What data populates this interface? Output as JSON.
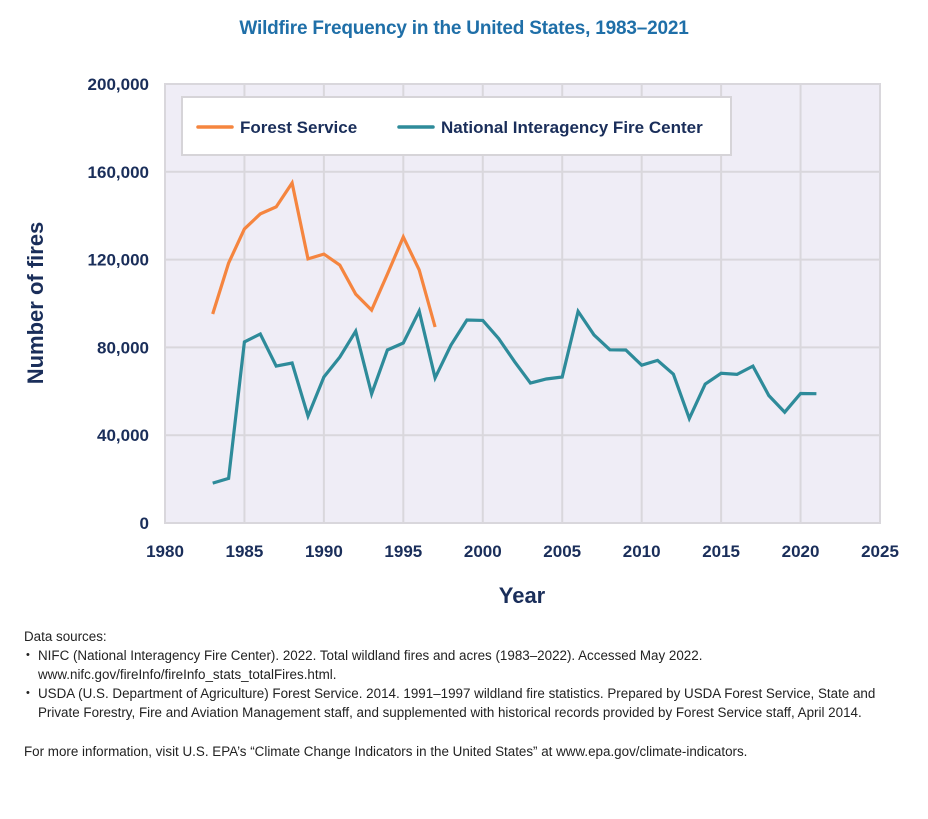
{
  "chart_data": {
    "type": "line",
    "title": "Wildfire Frequency in the United States, 1983–2021",
    "xlabel": "Year",
    "ylabel": "Number of fires",
    "xlim": [
      1980,
      2025
    ],
    "ylim": [
      0,
      200000
    ],
    "x_ticks": [
      1980,
      1985,
      1990,
      1995,
      2000,
      2005,
      2010,
      2015,
      2020,
      2025
    ],
    "x_tick_labels": [
      "1980",
      "1985",
      "1990",
      "1995",
      "2000",
      "2005",
      "2010",
      "2015",
      "2020",
      "2025"
    ],
    "y_ticks": [
      0,
      40000,
      80000,
      120000,
      160000,
      200000
    ],
    "y_tick_labels": [
      "0",
      "40,000",
      "80,000",
      "120,000",
      "160,000",
      "200,000"
    ],
    "grid": true,
    "legend_position": "top-left",
    "series": [
      {
        "name": "Forest Service",
        "color": "#f5853f",
        "x": [
          1983,
          1984,
          1985,
          1986,
          1987,
          1988,
          1989,
          1990,
          1991,
          1992,
          1993,
          1994,
          1995,
          1996,
          1997
        ],
        "values": [
          95200,
          118400,
          134000,
          140800,
          144000,
          154900,
          120300,
          122500,
          117500,
          104300,
          97000,
          113400,
          130300,
          115300,
          89300
        ]
      },
      {
        "name": "National Interagency Fire Center",
        "color": "#2e8b9a",
        "x": [
          1983,
          1984,
          1985,
          1986,
          1987,
          1988,
          1989,
          1990,
          1991,
          1992,
          1993,
          1994,
          1995,
          1996,
          1997,
          1998,
          1999,
          2000,
          2001,
          2002,
          2003,
          2004,
          2005,
          2006,
          2007,
          2008,
          2009,
          2010,
          2011,
          2012,
          2013,
          2014,
          2015,
          2016,
          2017,
          2018,
          2019,
          2020,
          2021
        ],
        "values": [
          18200,
          20300,
          82500,
          86100,
          71500,
          72900,
          48700,
          66500,
          75600,
          87400,
          58800,
          78800,
          82000,
          96600,
          66100,
          81100,
          92500,
          92300,
          84000,
          73500,
          63800,
          65600,
          66500,
          96400,
          85700,
          78900,
          78800,
          71900,
          74100,
          67800,
          47600,
          63300,
          68200,
          67700,
          71500,
          58100,
          50500,
          59000,
          58900
        ]
      }
    ]
  },
  "footer": {
    "sources_heading": "Data sources:",
    "sources": [
      "NIFC (National Interagency Fire Center). 2022. Total wildland fires and acres (1983–2022). Accessed May 2022. www.nifc.gov/fireInfo/fireInfo_stats_totalFires.html.",
      "USDA (U.S. Department of Agriculture) Forest Service. 2014. 1991–1997 wildland fire statistics. Prepared by USDA Forest Service, State and Private Forestry, Fire and Aviation Management staff, and supplemented with historical records provided by Forest Service staff, April 2014."
    ],
    "more_info": "For more information, visit U.S. EPA’s “Climate Change Indicators in the United States” at www.epa.gov/climate-indicators."
  },
  "colors": {
    "title": "#1f6fa8",
    "axis_text": "#1a2e5a",
    "plot_background": "#efedf6",
    "grid": "#d9d7dc"
  }
}
